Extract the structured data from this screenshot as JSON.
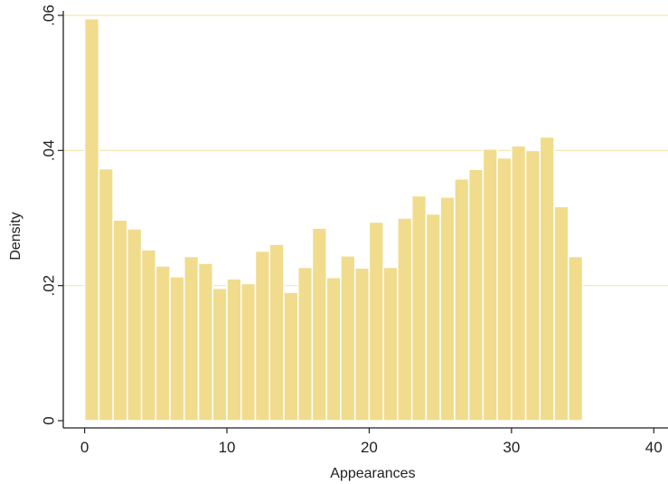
{
  "chart_data": {
    "type": "bar",
    "title": "",
    "xlabel": "Appearances",
    "ylabel": "Density",
    "xlim": [
      -1.5,
      41
    ],
    "ylim": [
      0,
      0.06
    ],
    "x_ticks": [
      {
        "value": 0,
        "label": "0"
      },
      {
        "value": 10,
        "label": "10"
      },
      {
        "value": 20,
        "label": "20"
      },
      {
        "value": 30,
        "label": "30"
      },
      {
        "value": 40,
        "label": "40"
      }
    ],
    "y_ticks": [
      {
        "value": 0,
        "label": "0"
      },
      {
        "value": 0.02,
        "label": ".02"
      },
      {
        "value": 0.04,
        "label": ".04"
      },
      {
        "value": 0.06,
        "label": ".06"
      }
    ],
    "grid": "horizontal",
    "bin_width": 1,
    "bin_start": 0,
    "values": [
      0.0595,
      0.0373,
      0.0297,
      0.0284,
      0.0253,
      0.0229,
      0.0213,
      0.0243,
      0.0233,
      0.0196,
      0.021,
      0.0203,
      0.0251,
      0.0261,
      0.019,
      0.0227,
      0.0285,
      0.0212,
      0.0244,
      0.0226,
      0.0294,
      0.0227,
      0.03,
      0.0333,
      0.0306,
      0.0331,
      0.0358,
      0.0372,
      0.0402,
      0.0389,
      0.0407,
      0.04,
      0.042,
      0.0317,
      0.0243
    ],
    "colors": {
      "bar_fill": "#f0dc8c",
      "bar_stroke": "#ffffff",
      "grid": "#f1e6b0",
      "axis": "#222222"
    }
  }
}
